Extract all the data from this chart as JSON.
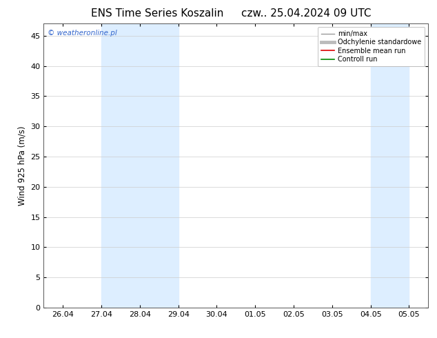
{
  "title_left": "ENS Time Series Koszalin",
  "title_right": "czw.. 25.04.2024 09 UTC",
  "ylabel": "Wind 925 hPa (m/s)",
  "watermark": "© weatheronline.pl",
  "watermark_color": "#3366cc",
  "ylim": [
    0,
    47
  ],
  "yticks": [
    0,
    5,
    10,
    15,
    20,
    25,
    30,
    35,
    40,
    45
  ],
  "x_labels": [
    "26.04",
    "27.04",
    "28.04",
    "29.04",
    "30.04",
    "01.05",
    "02.05",
    "03.05",
    "04.05",
    "05.05"
  ],
  "shaded_bands": [
    {
      "x_start": 1,
      "x_end": 3,
      "color": "#ddeeff"
    },
    {
      "x_start": 8,
      "x_end": 9,
      "color": "#ddeeff"
    }
  ],
  "xlim_left": -0.5,
  "xlim_right": 9.5,
  "background_color": "#ffffff",
  "plot_bg_color": "#ffffff",
  "grid_color": "#cccccc",
  "border_color": "#555555",
  "legend_items": [
    {
      "label": "min/max",
      "color": "#999999",
      "lw": 1.0,
      "ls": "-"
    },
    {
      "label": "Odchylenie standardowe",
      "color": "#bbbbbb",
      "lw": 3.5,
      "ls": "-"
    },
    {
      "label": "Ensemble mean run",
      "color": "#dd0000",
      "lw": 1.2,
      "ls": "-"
    },
    {
      "label": "Controll run",
      "color": "#008800",
      "lw": 1.2,
      "ls": "-"
    }
  ],
  "title_fontsize": 11,
  "tick_fontsize": 8,
  "label_fontsize": 8.5,
  "watermark_fontsize": 7.5,
  "legend_fontsize": 7
}
